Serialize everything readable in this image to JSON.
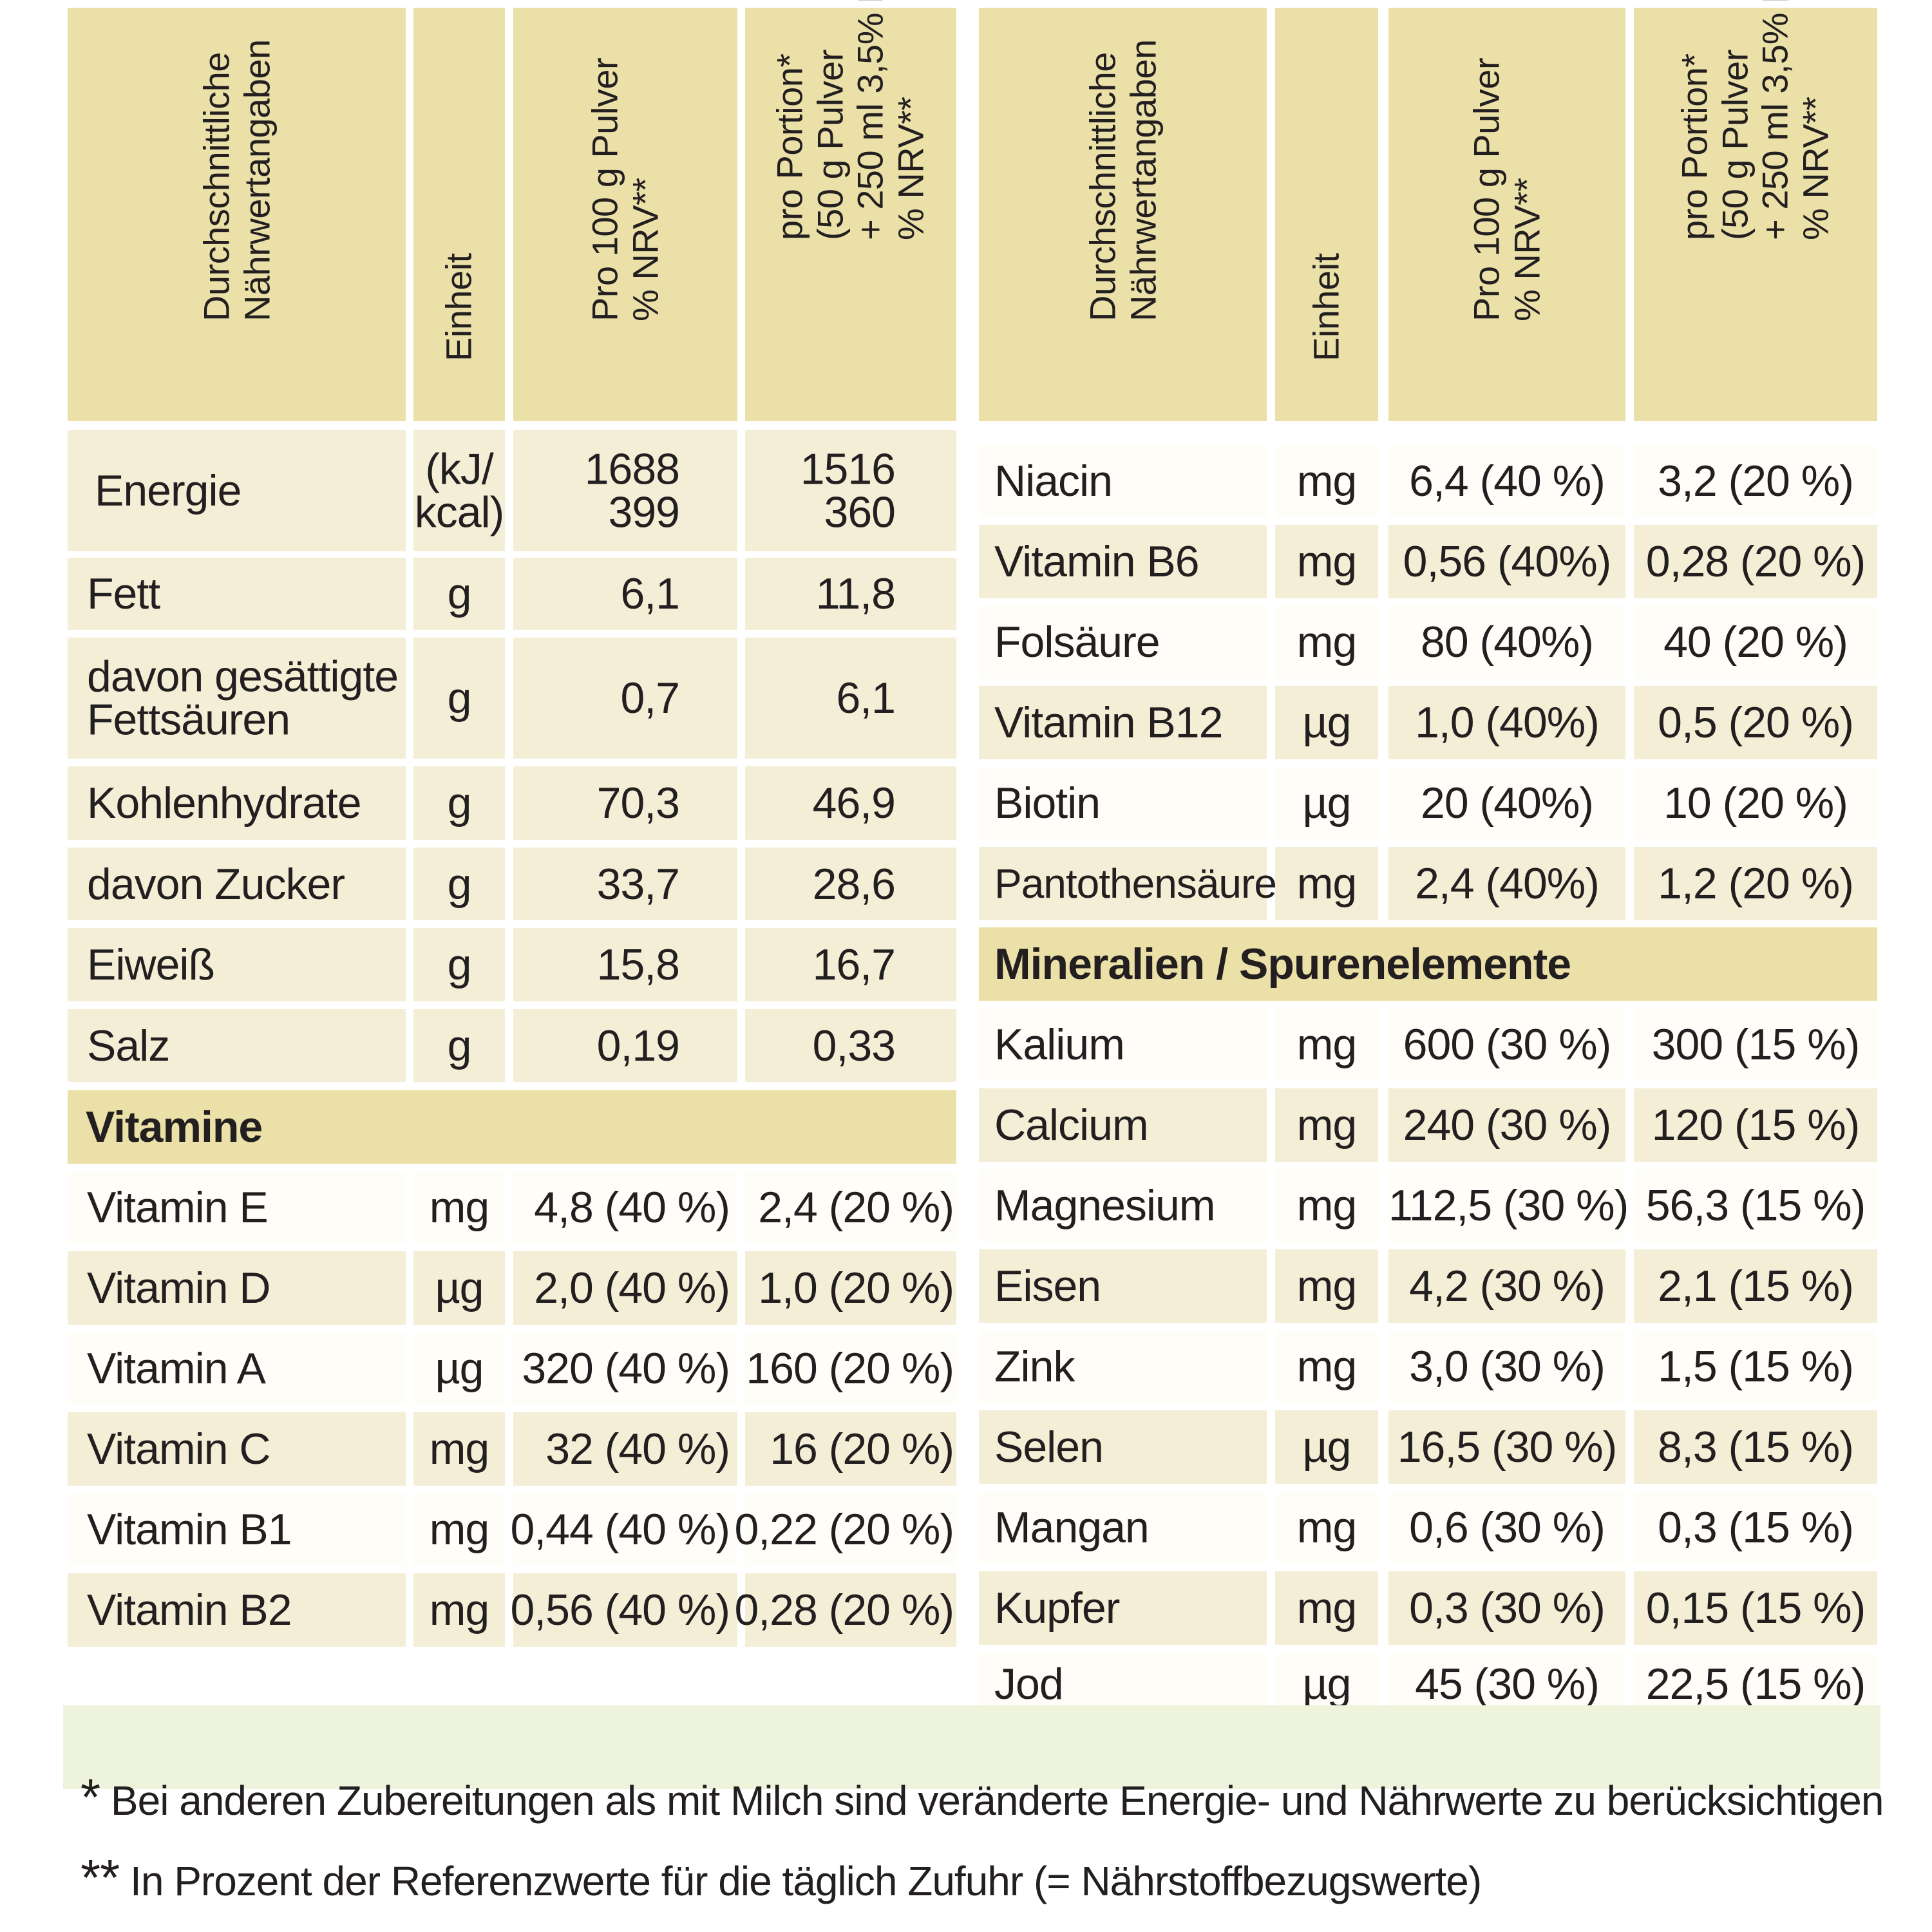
{
  "headers": {
    "nutrient": "Durchschnittliche\nNährwertangaben",
    "unit": "Einheit",
    "per100": "Pro 100 g Pulver\n% NRV**",
    "portion": "pro Portion*\n(50 g Pulver\n+ 250 ml 3,5% Milch)\n% NRV**"
  },
  "left_rows": [
    {
      "name": "Energie",
      "unit": "(kJ/\nkcal)",
      "per100": "1688\n399",
      "portion": "1516\n360"
    },
    {
      "name": "Fett",
      "unit": "g",
      "per100": "6,1",
      "portion": "11,8"
    },
    {
      "name": "davon gesättigte\nFettsäuren",
      "unit": "g",
      "per100": "0,7",
      "portion": "6,1"
    },
    {
      "name": "Kohlenhydrate",
      "unit": "g",
      "per100": "70,3",
      "portion": "46,9"
    },
    {
      "name": "davon Zucker",
      "unit": "g",
      "per100": "33,7",
      "portion": "28,6"
    },
    {
      "name": "Eiweiß",
      "unit": "g",
      "per100": "15,8",
      "portion": "16,7"
    },
    {
      "name": "Salz",
      "unit": "g",
      "per100": "0,19",
      "portion": "0,33"
    }
  ],
  "vitamine_title": "Vitamine",
  "vitamine_rows": [
    {
      "name": "Vitamin E",
      "unit": "mg",
      "per100": "4,8 (40 %)",
      "portion": "2,4 (20 %)"
    },
    {
      "name": "Vitamin D",
      "unit": "µg",
      "per100": "2,0 (40 %)",
      "portion": "1,0 (20 %)"
    },
    {
      "name": "Vitamin A",
      "unit": "µg",
      "per100": "320 (40 %)",
      "portion": "160 (20 %)"
    },
    {
      "name": "Vitamin C",
      "unit": "mg",
      "per100": "32 (40 %)",
      "portion": "16 (20 %)"
    },
    {
      "name": "Vitamin B1",
      "unit": "mg",
      "per100": "0,44 (40 %)",
      "portion": "0,22 (20 %)"
    },
    {
      "name": "Vitamin B2",
      "unit": "mg",
      "per100": "0,56 (40 %)",
      "portion": "0,28 (20 %)"
    }
  ],
  "right_rows": [
    {
      "name": "Niacin",
      "unit": "mg",
      "per100": "6,4 (40 %)",
      "portion": "3,2 (20 %)"
    },
    {
      "name": "Vitamin B6",
      "unit": "mg",
      "per100": "0,56 (40%)",
      "portion": "0,28  (20 %)"
    },
    {
      "name": "Folsäure",
      "unit": "mg",
      "per100": "80 (40%)",
      "portion": "40  (20 %)"
    },
    {
      "name": "Vitamin B12",
      "unit": "µg",
      "per100": "1,0 (40%)",
      "portion": "0,5  (20 %)"
    },
    {
      "name": "Biotin",
      "unit": "µg",
      "per100": "20 (40%)",
      "portion": "10 (20 %)"
    },
    {
      "name": "Pantothensäure",
      "unit": "mg",
      "per100": "2,4 (40%)",
      "portion": "1,2  (20 %)"
    }
  ],
  "mineral_title": "Mineralien / Spurenelemente",
  "mineral_rows": [
    {
      "name": "Kalium",
      "unit": "mg",
      "per100": "600 (30 %)",
      "portion": "300 (15  %)"
    },
    {
      "name": "Calcium",
      "unit": "mg",
      "per100": "240 (30 %)",
      "portion": "120 (15  %)"
    },
    {
      "name": "Magnesium",
      "unit": "mg",
      "per100": "112,5 (30 %)",
      "portion": "56,3 (15  %)"
    },
    {
      "name": "Eisen",
      "unit": "mg",
      "per100": "4,2  (30 %)",
      "portion": "2,1 (15  %)"
    },
    {
      "name": "Zink",
      "unit": "mg",
      "per100": "3,0  (30 %)",
      "portion": "1,5 (15  %)"
    },
    {
      "name": "Selen",
      "unit": "µg",
      "per100": "16,5  (30 %)",
      "portion": "8,3 (15  %)"
    },
    {
      "name": "Mangan",
      "unit": "mg",
      "per100": "0,6  (30 %)",
      "portion": "0,3 (15  %)"
    },
    {
      "name": "Kupfer",
      "unit": "mg",
      "per100": "0,3  (30 %)",
      "portion": "0,15 (15 %)"
    },
    {
      "name": "Jod",
      "unit": "µg",
      "per100": "45 (30 %)",
      "portion": "22,5  (15 %)"
    }
  ],
  "footnotes": {
    "f1_mark": "*",
    "f1_text": "Bei anderen Zubereitungen als mit Milch sind veränderte Energie- und Nährwerte zu berücksichtigen",
    "f2_mark": "**",
    "f2_text": "In Prozent der Referenzwerte für die täglich Zufuhr (= Nährstoffbezugswerte)"
  }
}
